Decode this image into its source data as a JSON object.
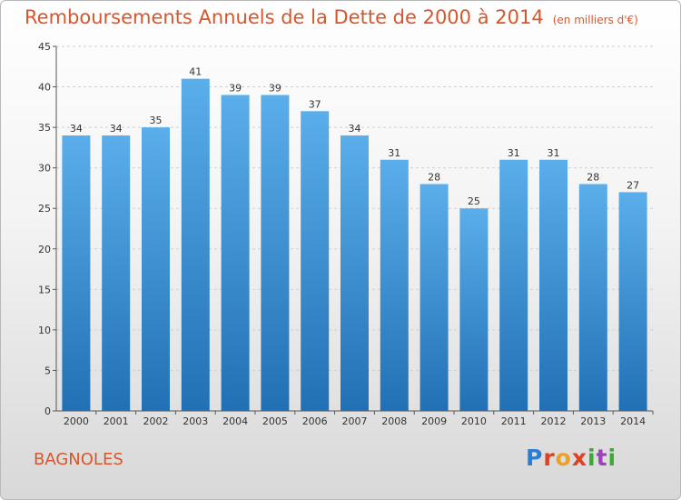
{
  "header": {
    "title": "Remboursements Annuels de la Dette de 2000 à 2014",
    "unit": "(en milliers d'€)"
  },
  "footer": {
    "city": "BAGNOLES",
    "logo": "Proxiti"
  },
  "colors": {
    "bar_top": "#5aaeea",
    "bar_bottom": "#2170b5",
    "title": "#d8562b"
  },
  "chart_data": {
    "type": "bar",
    "title": "Remboursements Annuels de la Dette de 2000 à 2014",
    "xlabel": "",
    "ylabel": "en milliers d'€",
    "categories": [
      "2000",
      "2001",
      "2002",
      "2003",
      "2004",
      "2005",
      "2006",
      "2007",
      "2008",
      "2009",
      "2010",
      "2011",
      "2012",
      "2013",
      "2014"
    ],
    "values": [
      34,
      34,
      35,
      41,
      39,
      39,
      37,
      34,
      31,
      28,
      25,
      31,
      31,
      28,
      27
    ],
    "ylim": [
      0,
      45
    ],
    "yticks": [
      0,
      5,
      10,
      15,
      20,
      25,
      30,
      35,
      40,
      45
    ],
    "grid": true,
    "legend": "none"
  }
}
